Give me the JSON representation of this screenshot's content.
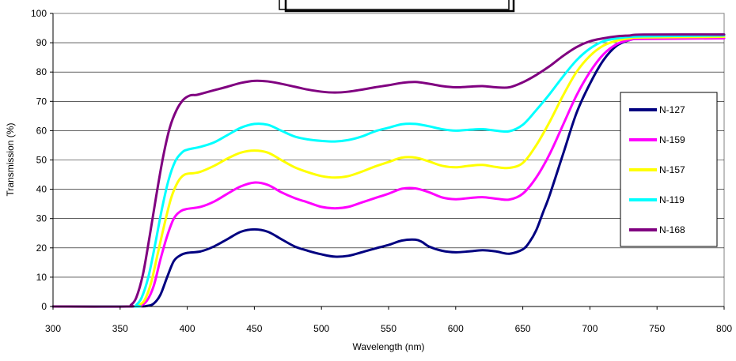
{
  "chart_data": {
    "type": "line",
    "title": "",
    "xlabel": "Wavelength (nm)",
    "ylabel": "Transmission (%)",
    "xlim": [
      300,
      800
    ],
    "ylim": [
      0,
      100
    ],
    "xticks": [
      300,
      350,
      400,
      450,
      500,
      550,
      600,
      650,
      700,
      750,
      800
    ],
    "yticks": [
      0,
      10,
      20,
      30,
      40,
      50,
      60,
      70,
      80,
      90,
      100
    ],
    "grid": "horizontal",
    "legend_position": "right",
    "series": [
      {
        "name": "N-127",
        "color": "#000080",
        "points": [
          [
            300,
            0
          ],
          [
            360,
            0
          ],
          [
            370,
            0.2
          ],
          [
            375,
            1
          ],
          [
            380,
            4
          ],
          [
            385,
            10
          ],
          [
            390,
            15.5
          ],
          [
            395,
            17.5
          ],
          [
            400,
            18.3
          ],
          [
            410,
            18.8
          ],
          [
            420,
            20.5
          ],
          [
            430,
            23
          ],
          [
            440,
            25.5
          ],
          [
            450,
            26.3
          ],
          [
            460,
            25.5
          ],
          [
            470,
            23
          ],
          [
            480,
            20.5
          ],
          [
            490,
            19
          ],
          [
            500,
            17.8
          ],
          [
            510,
            17
          ],
          [
            520,
            17.3
          ],
          [
            530,
            18.5
          ],
          [
            540,
            19.8
          ],
          [
            550,
            21
          ],
          [
            560,
            22.5
          ],
          [
            570,
            22.8
          ],
          [
            575,
            22
          ],
          [
            580,
            20.5
          ],
          [
            590,
            19
          ],
          [
            600,
            18.5
          ],
          [
            610,
            18.8
          ],
          [
            620,
            19.2
          ],
          [
            630,
            18.8
          ],
          [
            640,
            18
          ],
          [
            650,
            19.5
          ],
          [
            655,
            22
          ],
          [
            660,
            26
          ],
          [
            665,
            32
          ],
          [
            670,
            38
          ],
          [
            680,
            52
          ],
          [
            690,
            66
          ],
          [
            700,
            76
          ],
          [
            710,
            84
          ],
          [
            720,
            89
          ],
          [
            730,
            91
          ],
          [
            740,
            92
          ],
          [
            750,
            92.5
          ],
          [
            800,
            92.8
          ]
        ]
      },
      {
        "name": "N-159",
        "color": "#FF00FF",
        "points": [
          [
            300,
            0
          ],
          [
            360,
            0
          ],
          [
            365,
            0.3
          ],
          [
            370,
            2
          ],
          [
            375,
            7
          ],
          [
            380,
            16
          ],
          [
            385,
            24
          ],
          [
            390,
            30
          ],
          [
            395,
            32.5
          ],
          [
            400,
            33.3
          ],
          [
            410,
            34
          ],
          [
            420,
            35.8
          ],
          [
            430,
            38.5
          ],
          [
            440,
            41
          ],
          [
            450,
            42.3
          ],
          [
            460,
            41.5
          ],
          [
            470,
            39
          ],
          [
            480,
            37
          ],
          [
            490,
            35.5
          ],
          [
            500,
            34
          ],
          [
            510,
            33.5
          ],
          [
            520,
            34
          ],
          [
            530,
            35.5
          ],
          [
            540,
            37
          ],
          [
            550,
            38.5
          ],
          [
            560,
            40.2
          ],
          [
            570,
            40.3
          ],
          [
            580,
            39
          ],
          [
            590,
            37.2
          ],
          [
            600,
            36.6
          ],
          [
            610,
            37
          ],
          [
            620,
            37.3
          ],
          [
            630,
            36.8
          ],
          [
            640,
            36.5
          ],
          [
            650,
            38.5
          ],
          [
            660,
            44
          ],
          [
            670,
            52
          ],
          [
            680,
            62
          ],
          [
            690,
            72
          ],
          [
            700,
            80
          ],
          [
            710,
            86
          ],
          [
            720,
            89.5
          ],
          [
            730,
            91
          ],
          [
            740,
            91.3
          ],
          [
            800,
            91.5
          ]
        ]
      },
      {
        "name": "N-157",
        "color": "#FFFF00",
        "points": [
          [
            300,
            0
          ],
          [
            360,
            0
          ],
          [
            363,
            0.3
          ],
          [
            368,
            2
          ],
          [
            373,
            8
          ],
          [
            378,
            18
          ],
          [
            383,
            28
          ],
          [
            388,
            37
          ],
          [
            393,
            42.5
          ],
          [
            398,
            45
          ],
          [
            405,
            45.5
          ],
          [
            410,
            46
          ],
          [
            420,
            48
          ],
          [
            430,
            50.5
          ],
          [
            440,
            52.5
          ],
          [
            450,
            53.2
          ],
          [
            460,
            52.5
          ],
          [
            470,
            50
          ],
          [
            480,
            47.5
          ],
          [
            490,
            45.8
          ],
          [
            500,
            44.5
          ],
          [
            510,
            44
          ],
          [
            520,
            44.5
          ],
          [
            530,
            46
          ],
          [
            540,
            47.8
          ],
          [
            550,
            49.3
          ],
          [
            560,
            50.8
          ],
          [
            570,
            50.8
          ],
          [
            580,
            49.5
          ],
          [
            590,
            48
          ],
          [
            600,
            47.5
          ],
          [
            610,
            48
          ],
          [
            620,
            48.3
          ],
          [
            630,
            47.6
          ],
          [
            640,
            47.3
          ],
          [
            650,
            49
          ],
          [
            660,
            55
          ],
          [
            670,
            63
          ],
          [
            680,
            72
          ],
          [
            690,
            80
          ],
          [
            700,
            85.5
          ],
          [
            710,
            89
          ],
          [
            720,
            90.7
          ],
          [
            730,
            91.5
          ],
          [
            740,
            91.8
          ],
          [
            800,
            92
          ]
        ]
      },
      {
        "name": "N-119",
        "color": "#00FFFF",
        "points": [
          [
            300,
            0
          ],
          [
            360,
            0
          ],
          [
            362,
            0.5
          ],
          [
            366,
            3
          ],
          [
            371,
            10
          ],
          [
            376,
            21
          ],
          [
            381,
            33
          ],
          [
            386,
            43
          ],
          [
            391,
            49.5
          ],
          [
            396,
            52.5
          ],
          [
            400,
            53.5
          ],
          [
            410,
            54.5
          ],
          [
            420,
            56
          ],
          [
            430,
            58.5
          ],
          [
            440,
            61
          ],
          [
            450,
            62.3
          ],
          [
            460,
            62
          ],
          [
            470,
            60
          ],
          [
            480,
            58
          ],
          [
            490,
            57
          ],
          [
            500,
            56.5
          ],
          [
            510,
            56.3
          ],
          [
            520,
            56.8
          ],
          [
            530,
            58
          ],
          [
            540,
            59.8
          ],
          [
            550,
            61
          ],
          [
            560,
            62.2
          ],
          [
            570,
            62.3
          ],
          [
            580,
            61.5
          ],
          [
            590,
            60.5
          ],
          [
            600,
            60
          ],
          [
            610,
            60.3
          ],
          [
            620,
            60.5
          ],
          [
            630,
            60
          ],
          [
            640,
            59.8
          ],
          [
            650,
            62
          ],
          [
            660,
            67
          ],
          [
            670,
            72.5
          ],
          [
            680,
            78.5
          ],
          [
            690,
            84
          ],
          [
            700,
            88
          ],
          [
            710,
            90.5
          ],
          [
            720,
            91.5
          ],
          [
            730,
            92
          ],
          [
            740,
            92.2
          ],
          [
            800,
            92.5
          ]
        ]
      },
      {
        "name": "N-168",
        "color": "#800080",
        "points": [
          [
            300,
            0
          ],
          [
            355,
            0
          ],
          [
            358,
            0.5
          ],
          [
            362,
            3
          ],
          [
            367,
            11
          ],
          [
            372,
            24
          ],
          [
            377,
            38
          ],
          [
            382,
            51
          ],
          [
            387,
            61
          ],
          [
            392,
            67
          ],
          [
            397,
            70.5
          ],
          [
            402,
            72
          ],
          [
            407,
            72.2
          ],
          [
            412,
            72.8
          ],
          [
            420,
            73.8
          ],
          [
            430,
            75
          ],
          [
            440,
            76.3
          ],
          [
            450,
            77
          ],
          [
            460,
            76.8
          ],
          [
            470,
            76
          ],
          [
            480,
            75
          ],
          [
            490,
            74
          ],
          [
            500,
            73.3
          ],
          [
            510,
            73
          ],
          [
            520,
            73.3
          ],
          [
            530,
            74
          ],
          [
            540,
            74.8
          ],
          [
            550,
            75.5
          ],
          [
            560,
            76.3
          ],
          [
            570,
            76.6
          ],
          [
            580,
            76
          ],
          [
            590,
            75.2
          ],
          [
            600,
            74.8
          ],
          [
            610,
            75
          ],
          [
            620,
            75.2
          ],
          [
            630,
            74.8
          ],
          [
            640,
            74.8
          ],
          [
            650,
            76.5
          ],
          [
            660,
            79
          ],
          [
            670,
            82
          ],
          [
            680,
            85.5
          ],
          [
            690,
            88.5
          ],
          [
            700,
            90.5
          ],
          [
            710,
            91.5
          ],
          [
            720,
            92.2
          ],
          [
            730,
            92.5
          ],
          [
            740,
            92.8
          ],
          [
            800,
            92.8
          ]
        ]
      }
    ]
  }
}
